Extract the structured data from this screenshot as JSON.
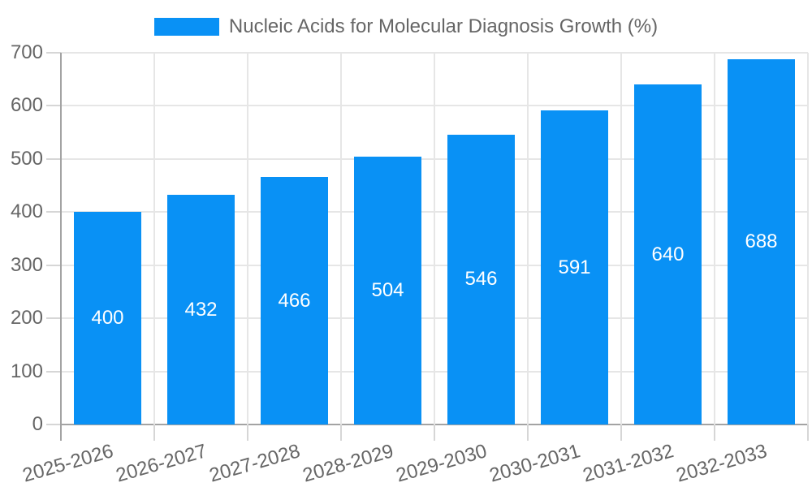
{
  "chart_data": {
    "type": "bar",
    "title": "Nucleic Acids for Molecular Diagnosis Growth (%)",
    "legend": {
      "label": "Nucleic Acids for Molecular Diagnosis Growth (%)",
      "position": "top"
    },
    "categories": [
      "2025-2026",
      "2026-2027",
      "2027-2028",
      "2028-2029",
      "2029-2030",
      "2030-2031",
      "2031-2032",
      "2032-2033"
    ],
    "series": [
      {
        "name": "Nucleic Acids for Molecular Diagnosis Growth (%)",
        "values": [
          400,
          432,
          466,
          504,
          546,
          591,
          640,
          688
        ]
      }
    ],
    "data_labels_shown": true,
    "xlabel": "",
    "ylabel": "",
    "ylim": [
      0,
      700
    ],
    "yticks": [
      0,
      100,
      200,
      300,
      400,
      500,
      600,
      700
    ],
    "grid": true,
    "colors": {
      "bar": "#0991f5",
      "bar_value_label": "#ffffff",
      "axis_text": "#666666",
      "grid_line": "#e6e6e6",
      "axis_line": "#a3a3a3"
    }
  }
}
